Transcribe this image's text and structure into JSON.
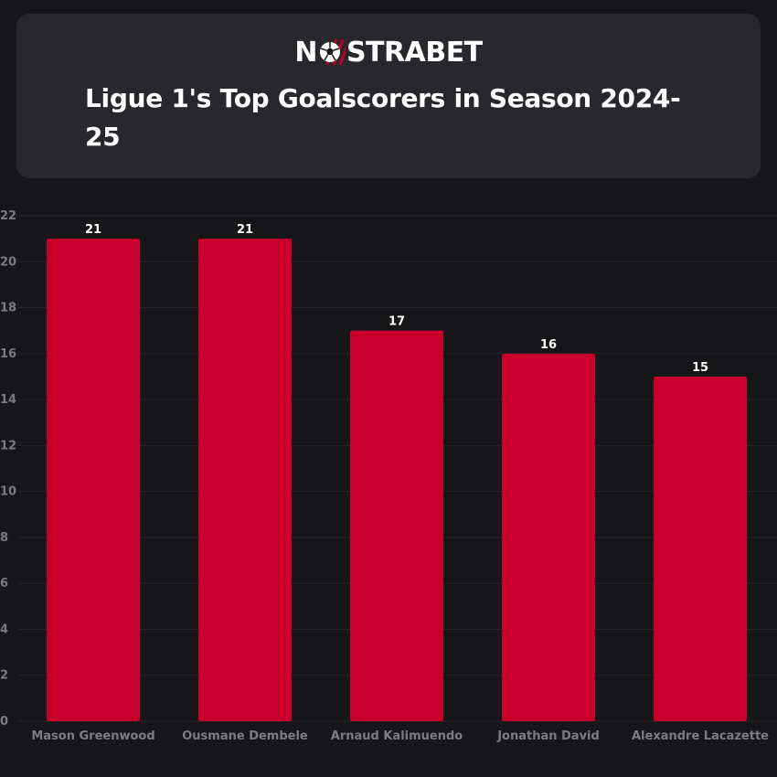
{
  "brand": {
    "logo_text_before": "N",
    "logo_text_after": "STRABET",
    "logo_icon": "soccer-ball-icon"
  },
  "title": "Ligue 1's Top Goalscorers in Season 2024-25",
  "colors": {
    "bar": "#c8002b",
    "background": "#17171a",
    "card": "#28282c",
    "grid": "#26262a"
  },
  "chart_data": {
    "type": "bar",
    "title": "Ligue 1's Top Goalscorers in Season 2024-25",
    "categories": [
      "Mason Greenwood",
      "Ousmane Dembele",
      "Arnaud Kalimuendo",
      "Jonathan David",
      "Alexandre Lacazette"
    ],
    "values": [
      21,
      21,
      17,
      16,
      15
    ],
    "xlabel": "",
    "ylabel": "",
    "ylim": [
      0,
      22
    ],
    "yticks": [
      0,
      2,
      4,
      6,
      8,
      10,
      12,
      14,
      16,
      18,
      20,
      22
    ],
    "grid": true,
    "data_labels": true
  }
}
